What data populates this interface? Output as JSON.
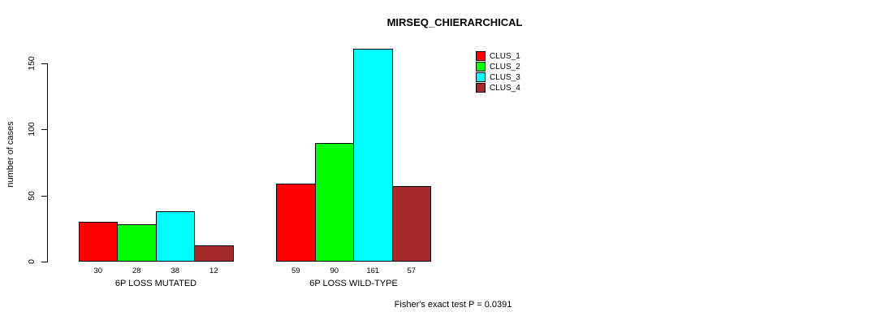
{
  "chart_data": {
    "type": "bar",
    "title": "MIRSEQ_CHIERARCHICAL",
    "xlabel": "",
    "ylabel": "number of cases",
    "categories": [
      "6P LOSS MUTATED",
      "6P LOSS WILD-TYPE"
    ],
    "series": [
      {
        "name": "CLUS_1",
        "color": "#ff0000",
        "values": [
          30,
          59
        ]
      },
      {
        "name": "CLUS_2",
        "color": "#00ff00",
        "values": [
          28,
          90
        ]
      },
      {
        "name": "CLUS_3",
        "color": "#00ffff",
        "values": [
          38,
          161
        ]
      },
      {
        "name": "CLUS_4",
        "color": "#a52a2a",
        "values": [
          12,
          57
        ]
      }
    ],
    "yticks": [
      0,
      50,
      100,
      150
    ],
    "ylim": [
      0,
      163
    ],
    "grid": false,
    "legend_position": "top-right",
    "bar_value_labels_shown": true,
    "annotation": "Fisher's exact test P = 0.0391"
  }
}
